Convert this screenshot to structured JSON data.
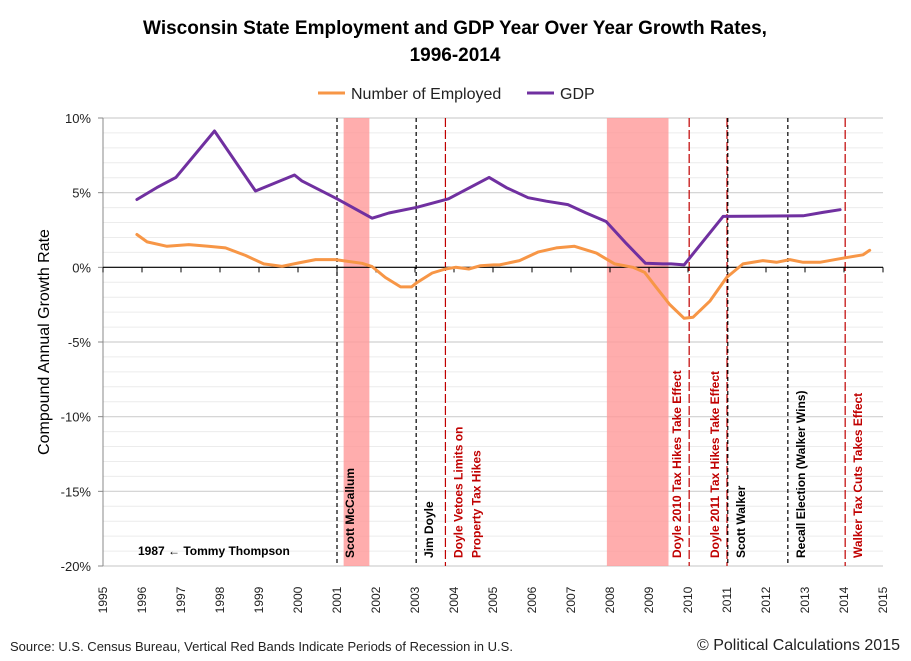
{
  "chart_data": {
    "type": "line",
    "title": "Wisconsin State Employment and GDP Year Over Year Growth Rates, 1996-2014",
    "title_lines": [
      "Wisconsin State Employment and GDP Year Over Year Growth Rates,",
      "1996-2014"
    ],
    "ylabel": "Compound Annual Growth Rate",
    "xlabel": "",
    "xlim": [
      1995,
      2015
    ],
    "ylim": [
      -20,
      10
    ],
    "x_ticks": [
      1995,
      1996,
      1997,
      1998,
      1999,
      2000,
      2001,
      2002,
      2003,
      2004,
      2005,
      2006,
      2007,
      2008,
      2009,
      2010,
      2011,
      2012,
      2013,
      2014,
      2015
    ],
    "y_ticks": [
      {
        "v": 10,
        "label": "10%"
      },
      {
        "v": 5,
        "label": "5%"
      },
      {
        "v": 0,
        "label": "0%"
      },
      {
        "v": -5,
        "label": "-5%"
      },
      {
        "v": -10,
        "label": "-10%"
      },
      {
        "v": -15,
        "label": "-15%"
      },
      {
        "v": -20,
        "label": "-20%"
      }
    ],
    "grid": true,
    "legend_placement": "top",
    "series": [
      {
        "name": "Number of Employed",
        "color": "#f79646",
        "points": [
          [
            1995.87,
            2.2
          ],
          [
            1996.13,
            1.7
          ],
          [
            1996.64,
            1.41
          ],
          [
            1997.2,
            1.52
          ],
          [
            1997.7,
            1.41
          ],
          [
            1998.14,
            1.3
          ],
          [
            1998.65,
            0.8
          ],
          [
            1999.12,
            0.23
          ],
          [
            1999.59,
            0.07
          ],
          [
            2000.02,
            0.3
          ],
          [
            2000.45,
            0.52
          ],
          [
            2000.96,
            0.52
          ],
          [
            2001.64,
            0.27
          ],
          [
            2001.9,
            0.05
          ],
          [
            2002.24,
            -0.68
          ],
          [
            2002.63,
            -1.31
          ],
          [
            2002.91,
            -1.31
          ],
          [
            2003.05,
            -1.02
          ],
          [
            2003.44,
            -0.38
          ],
          [
            2003.78,
            -0.11
          ],
          [
            2004.04,
            0.0
          ],
          [
            2004.38,
            -0.11
          ],
          [
            2004.68,
            0.11
          ],
          [
            2005.02,
            0.16
          ],
          [
            2005.17,
            0.16
          ],
          [
            2005.68,
            0.45
          ],
          [
            2006.15,
            1.02
          ],
          [
            2006.62,
            1.3
          ],
          [
            2007.09,
            1.41
          ],
          [
            2007.65,
            0.95
          ],
          [
            2008.12,
            0.23
          ],
          [
            2008.59,
            0.0
          ],
          [
            2008.89,
            -0.34
          ],
          [
            2009.19,
            -1.36
          ],
          [
            2009.53,
            -2.49
          ],
          [
            2009.9,
            -3.41
          ],
          [
            2010.13,
            -3.34
          ],
          [
            2010.56,
            -2.27
          ],
          [
            2010.99,
            -0.68
          ],
          [
            2011.41,
            0.23
          ],
          [
            2011.92,
            0.45
          ],
          [
            2012.27,
            0.34
          ],
          [
            2012.61,
            0.52
          ],
          [
            2012.95,
            0.34
          ],
          [
            2013.38,
            0.34
          ],
          [
            2013.97,
            0.61
          ],
          [
            2014.49,
            0.84
          ],
          [
            2014.66,
            1.14
          ]
        ]
      },
      {
        "name": "GDP",
        "color": "#7030a0",
        "points": [
          [
            1995.87,
            4.54
          ],
          [
            1996.38,
            5.34
          ],
          [
            1996.87,
            6.02
          ],
          [
            1997.86,
            9.13
          ],
          [
            1998.91,
            5.11
          ],
          [
            1999.91,
            6.18
          ],
          [
            2000.1,
            5.79
          ],
          [
            2001.0,
            4.59
          ],
          [
            2001.9,
            3.29
          ],
          [
            2002.33,
            3.64
          ],
          [
            2003.05,
            4.02
          ],
          [
            2003.86,
            4.59
          ],
          [
            2004.9,
            6.02
          ],
          [
            2005.34,
            5.34
          ],
          [
            2005.9,
            4.66
          ],
          [
            2006.37,
            4.43
          ],
          [
            2006.92,
            4.2
          ],
          [
            2007.39,
            3.64
          ],
          [
            2007.9,
            3.07
          ],
          [
            2008.42,
            1.59
          ],
          [
            2008.91,
            0.27
          ],
          [
            2009.36,
            0.23
          ],
          [
            2009.57,
            0.23
          ],
          [
            2009.9,
            0.16
          ],
          [
            2010.9,
            3.41
          ],
          [
            2012.95,
            3.45
          ],
          [
            2013.46,
            3.68
          ],
          [
            2013.9,
            3.86
          ]
        ]
      }
    ],
    "recessions": [
      [
        2001.17,
        2001.83
      ],
      [
        2007.92,
        2009.5
      ]
    ],
    "recession_color": "#ff9999",
    "events": [
      {
        "x": 2001.0,
        "label": [
          "Scott McCallum"
        ],
        "color": "#000000",
        "side": "right"
      },
      {
        "x": 2003.03,
        "label": [
          "Jim Doyle"
        ],
        "color": "#000000",
        "side": "right"
      },
      {
        "x": 2003.78,
        "label": [
          "Doyle Vetoes Limits on",
          "Property Tax Hikes"
        ],
        "color": "#c00000",
        "side": "right"
      },
      {
        "x": 2010.03,
        "label": [
          "Doyle 2010  Tax Hikes Take Effect"
        ],
        "color": "#c00000",
        "side": "left"
      },
      {
        "x": 2011.0,
        "label": [
          "Doyle 2011  Tax Hikes Take Effect"
        ],
        "color": "#c00000",
        "side": "left"
      },
      {
        "x": 2011.02,
        "label": [
          "Scott Walker"
        ],
        "color": "#000000",
        "side": "right"
      },
      {
        "x": 2012.56,
        "label": [
          "Recall Election (Walker Wins)"
        ],
        "color": "#000000",
        "side": "right"
      },
      {
        "x": 2014.03,
        "label": [
          "Walker Tax Cuts Takes Effect"
        ],
        "color": "#c00000",
        "side": "right"
      }
    ],
    "annotation": "1987 ← Tommy Thompson"
  },
  "footer": {
    "source": "Source: U.S. Census Bureau, Vertical Red Bands Indicate Periods of Recession in U.S.",
    "copyright": "© Political Calculations 2015"
  }
}
